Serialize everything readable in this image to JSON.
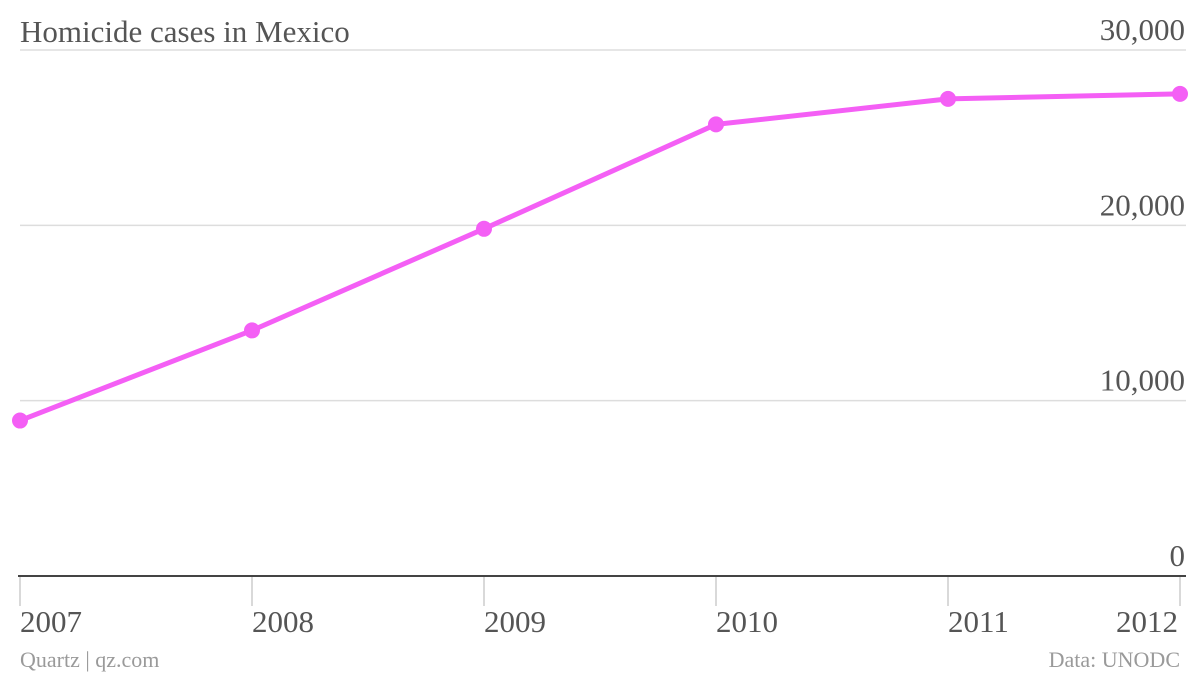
{
  "chart_data": {
    "type": "line",
    "title": "Homicide cases in Mexico",
    "x": [
      "2007",
      "2008",
      "2009",
      "2010",
      "2011",
      "2012"
    ],
    "series": [
      {
        "values": [
          8867,
          14006,
          19803,
          25757,
          27213,
          27499
        ]
      }
    ],
    "ylim": [
      0,
      30000
    ],
    "yticks": [
      "0",
      "10,000",
      "20,000",
      "30,000"
    ],
    "ytick_values": [
      0,
      10000,
      20000,
      30000
    ],
    "grid": true,
    "y_axis_side": "right",
    "line_color": "#f45ff5"
  },
  "footer": {
    "source_left": "Quartz | qz.com",
    "source_right": "Data: UNODC"
  }
}
